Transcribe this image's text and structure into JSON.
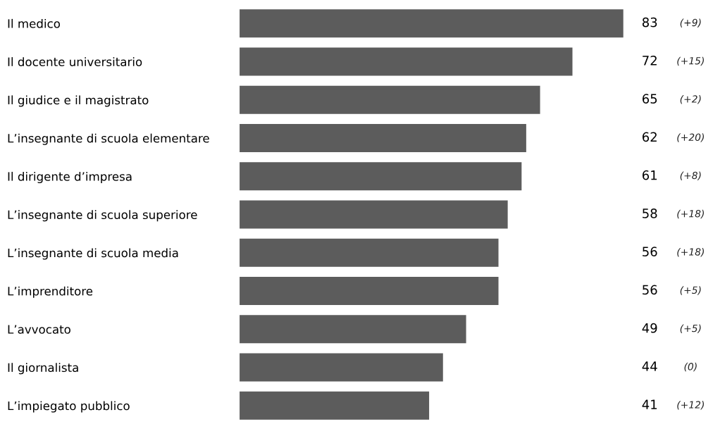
{
  "chart_data": {
    "type": "bar",
    "orientation": "horizontal",
    "relative": false,
    "categories": [
      "Il medico",
      "Il docente universitario",
      "Il giudice e il magistrato",
      "L’insegnante di scuola elementare",
      "Il dirigente d’impresa",
      "L’insegnante di scuola superiore",
      "L’insegnante di scuola media",
      "L’imprenditore",
      "L’avvocato",
      "Il giornalista",
      "L’impiegato pubblico"
    ],
    "values": [
      83,
      72,
      65,
      62,
      61,
      58,
      56,
      56,
      49,
      44,
      41
    ],
    "color": "#5c5c5c",
    "data_labels": true,
    "annotations": [
      "(+9)",
      "(+15)",
      "(+2)",
      "(+20)",
      "(+8)",
      "(+18)",
      "(+18)",
      "(+5)",
      "(+5)",
      "(0)",
      "(+12)"
    ]
  }
}
